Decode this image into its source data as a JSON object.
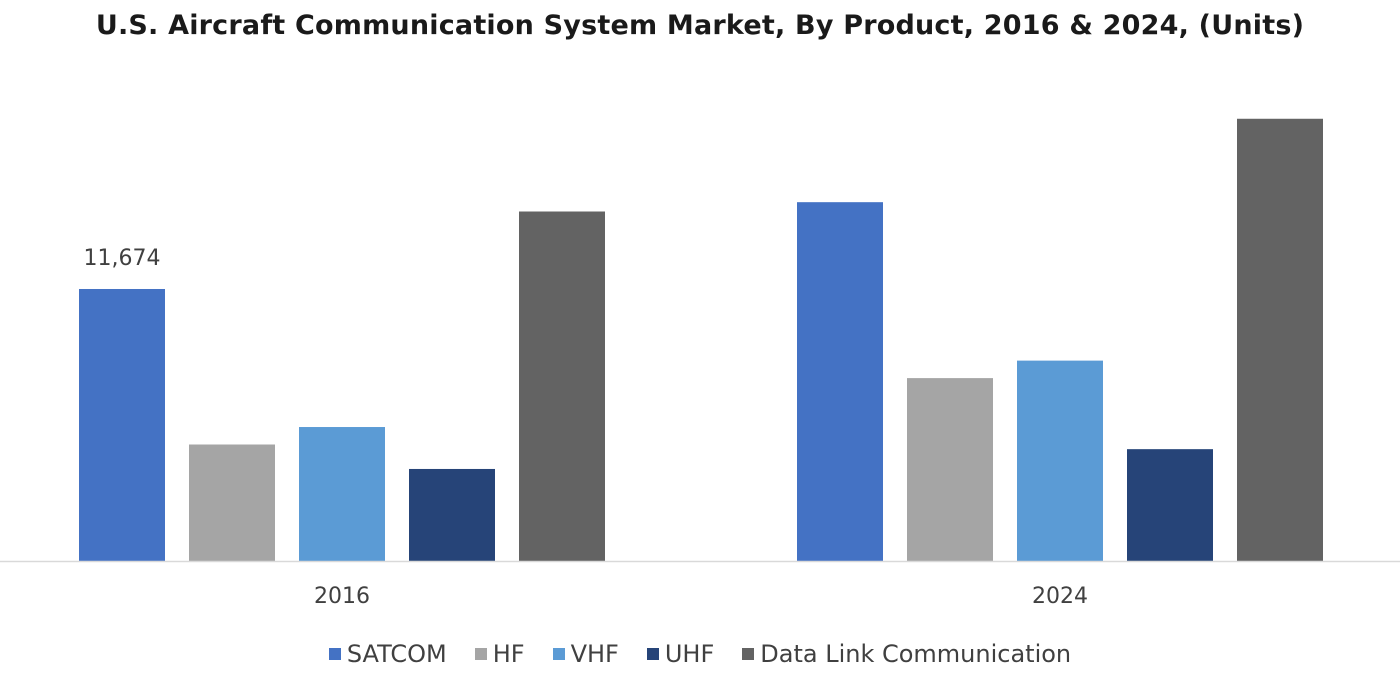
{
  "chart_data": {
    "type": "bar",
    "title": "U.S. Aircraft Communication System Market, By Product, 2016 & 2024, (Units)",
    "categories": [
      "2016",
      "2024"
    ],
    "series": [
      {
        "name": "SATCOM",
        "color": "#4472C4",
        "values": [
          11674,
          15400
        ]
      },
      {
        "name": "HF",
        "color": "#A5A5A5",
        "values": [
          5000,
          7850
        ]
      },
      {
        "name": "VHF",
        "color": "#5B9BD5",
        "values": [
          5750,
          8600
        ]
      },
      {
        "name": "UHF",
        "color": "#264478",
        "values": [
          3950,
          4800
        ]
      },
      {
        "name": "Data Link Communication",
        "color": "#636363",
        "values": [
          15000,
          18980
        ]
      }
    ],
    "data_labels": [
      {
        "series": "SATCOM",
        "category": "2016",
        "text": "11,674"
      }
    ],
    "xlabel": "",
    "ylabel": "",
    "ylim": [
      0,
      20000
    ],
    "grid": false,
    "legend_position": "bottom"
  }
}
